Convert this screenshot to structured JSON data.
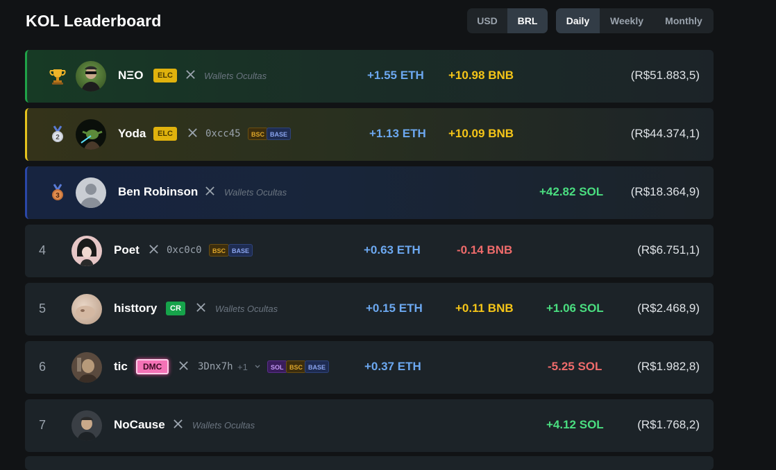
{
  "title": "KOL Leaderboard",
  "currency_options": [
    {
      "label": "USD",
      "active": false
    },
    {
      "label": "BRL",
      "active": true
    }
  ],
  "period_options": [
    {
      "label": "Daily",
      "active": true
    },
    {
      "label": "Weekly",
      "active": false
    },
    {
      "label": "Monthly",
      "active": false
    }
  ],
  "rows": [
    {
      "rank": "1",
      "medal": "trophy-icon",
      "name": "NΞO",
      "tag": "ELC",
      "wallet": "Wallets Ocultas",
      "eth": "+1.55 ETH",
      "bnb": "+10.98 BNB",
      "sol": "",
      "total": "(R$51.883,5)"
    },
    {
      "rank": "2",
      "medal": "silver-medal-icon",
      "medal_text": "2",
      "name": "Yoda",
      "tag": "ELC",
      "address": "0xcc45",
      "chips": [
        "BSC",
        "BASE"
      ],
      "eth": "+1.13 ETH",
      "bnb": "+10.09 BNB",
      "sol": "",
      "total": "(R$44.374,1)"
    },
    {
      "rank": "3",
      "medal": "bronze-medal-icon",
      "medal_text": "3",
      "name": "Ben Robinson",
      "wallet": "Wallets Ocultas",
      "eth": "",
      "bnb": "",
      "sol": "+42.82 SOL",
      "total": "(R$18.364,9)"
    },
    {
      "rank": "4",
      "name": "Poet",
      "address": "0xc0c0",
      "chips": [
        "BSC",
        "BASE"
      ],
      "eth": "+0.63 ETH",
      "bnb": "-0.14 BNB",
      "sol": "",
      "total": "(R$6.751,1)"
    },
    {
      "rank": "5",
      "name": "histtory",
      "tag": "CR",
      "wallet": "Wallets Ocultas",
      "eth": "+0.15 ETH",
      "bnb": "+0.11 BNB",
      "sol": "+1.06 SOL",
      "total": "(R$2.468,9)"
    },
    {
      "rank": "6",
      "name": "tic",
      "tag": "DMC",
      "address": "3Dnx7h",
      "address_extra": "+1",
      "chips": [
        "SOL",
        "BSC",
        "BASE"
      ],
      "eth": "+0.37 ETH",
      "bnb": "",
      "sol": "-5.25 SOL",
      "total": "(R$1.982,8)"
    },
    {
      "rank": "7",
      "name": "NoCause",
      "wallet": "Wallets Ocultas",
      "eth": "",
      "bnb": "",
      "sol": "+4.12 SOL",
      "total": "(R$1.768,2)"
    }
  ],
  "colors": {
    "eth": "#6ca8f0",
    "bnb": "#f5c518",
    "sol": "#4ade80",
    "negative": "#ef6b6b"
  }
}
